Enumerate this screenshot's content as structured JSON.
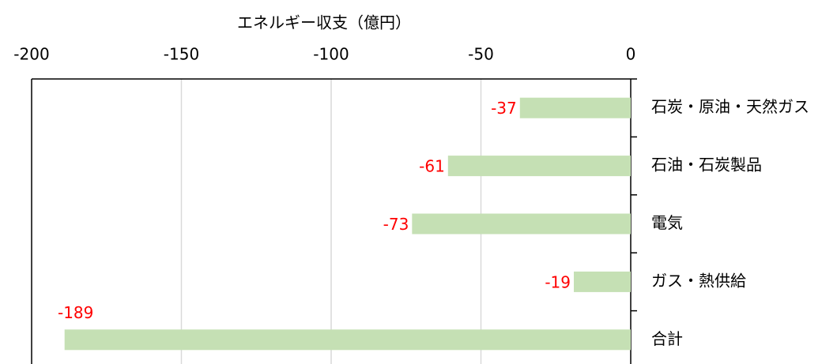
{
  "chart_data": {
    "type": "bar",
    "orientation": "horizontal",
    "title": "エネルギー収支（億円）",
    "categories": [
      "石炭・原油・天然ガス",
      "石油・石炭製品",
      "電気",
      "ガス・熱供給",
      "合計"
    ],
    "values": [
      -37,
      -61,
      -73,
      -19,
      -189
    ],
    "color": "#c5e0b4",
    "label_color": "#ff0000",
    "xlim": [
      -200,
      0
    ],
    "xticks": [
      -200,
      -150,
      -100,
      -50,
      0
    ],
    "grid": true
  }
}
